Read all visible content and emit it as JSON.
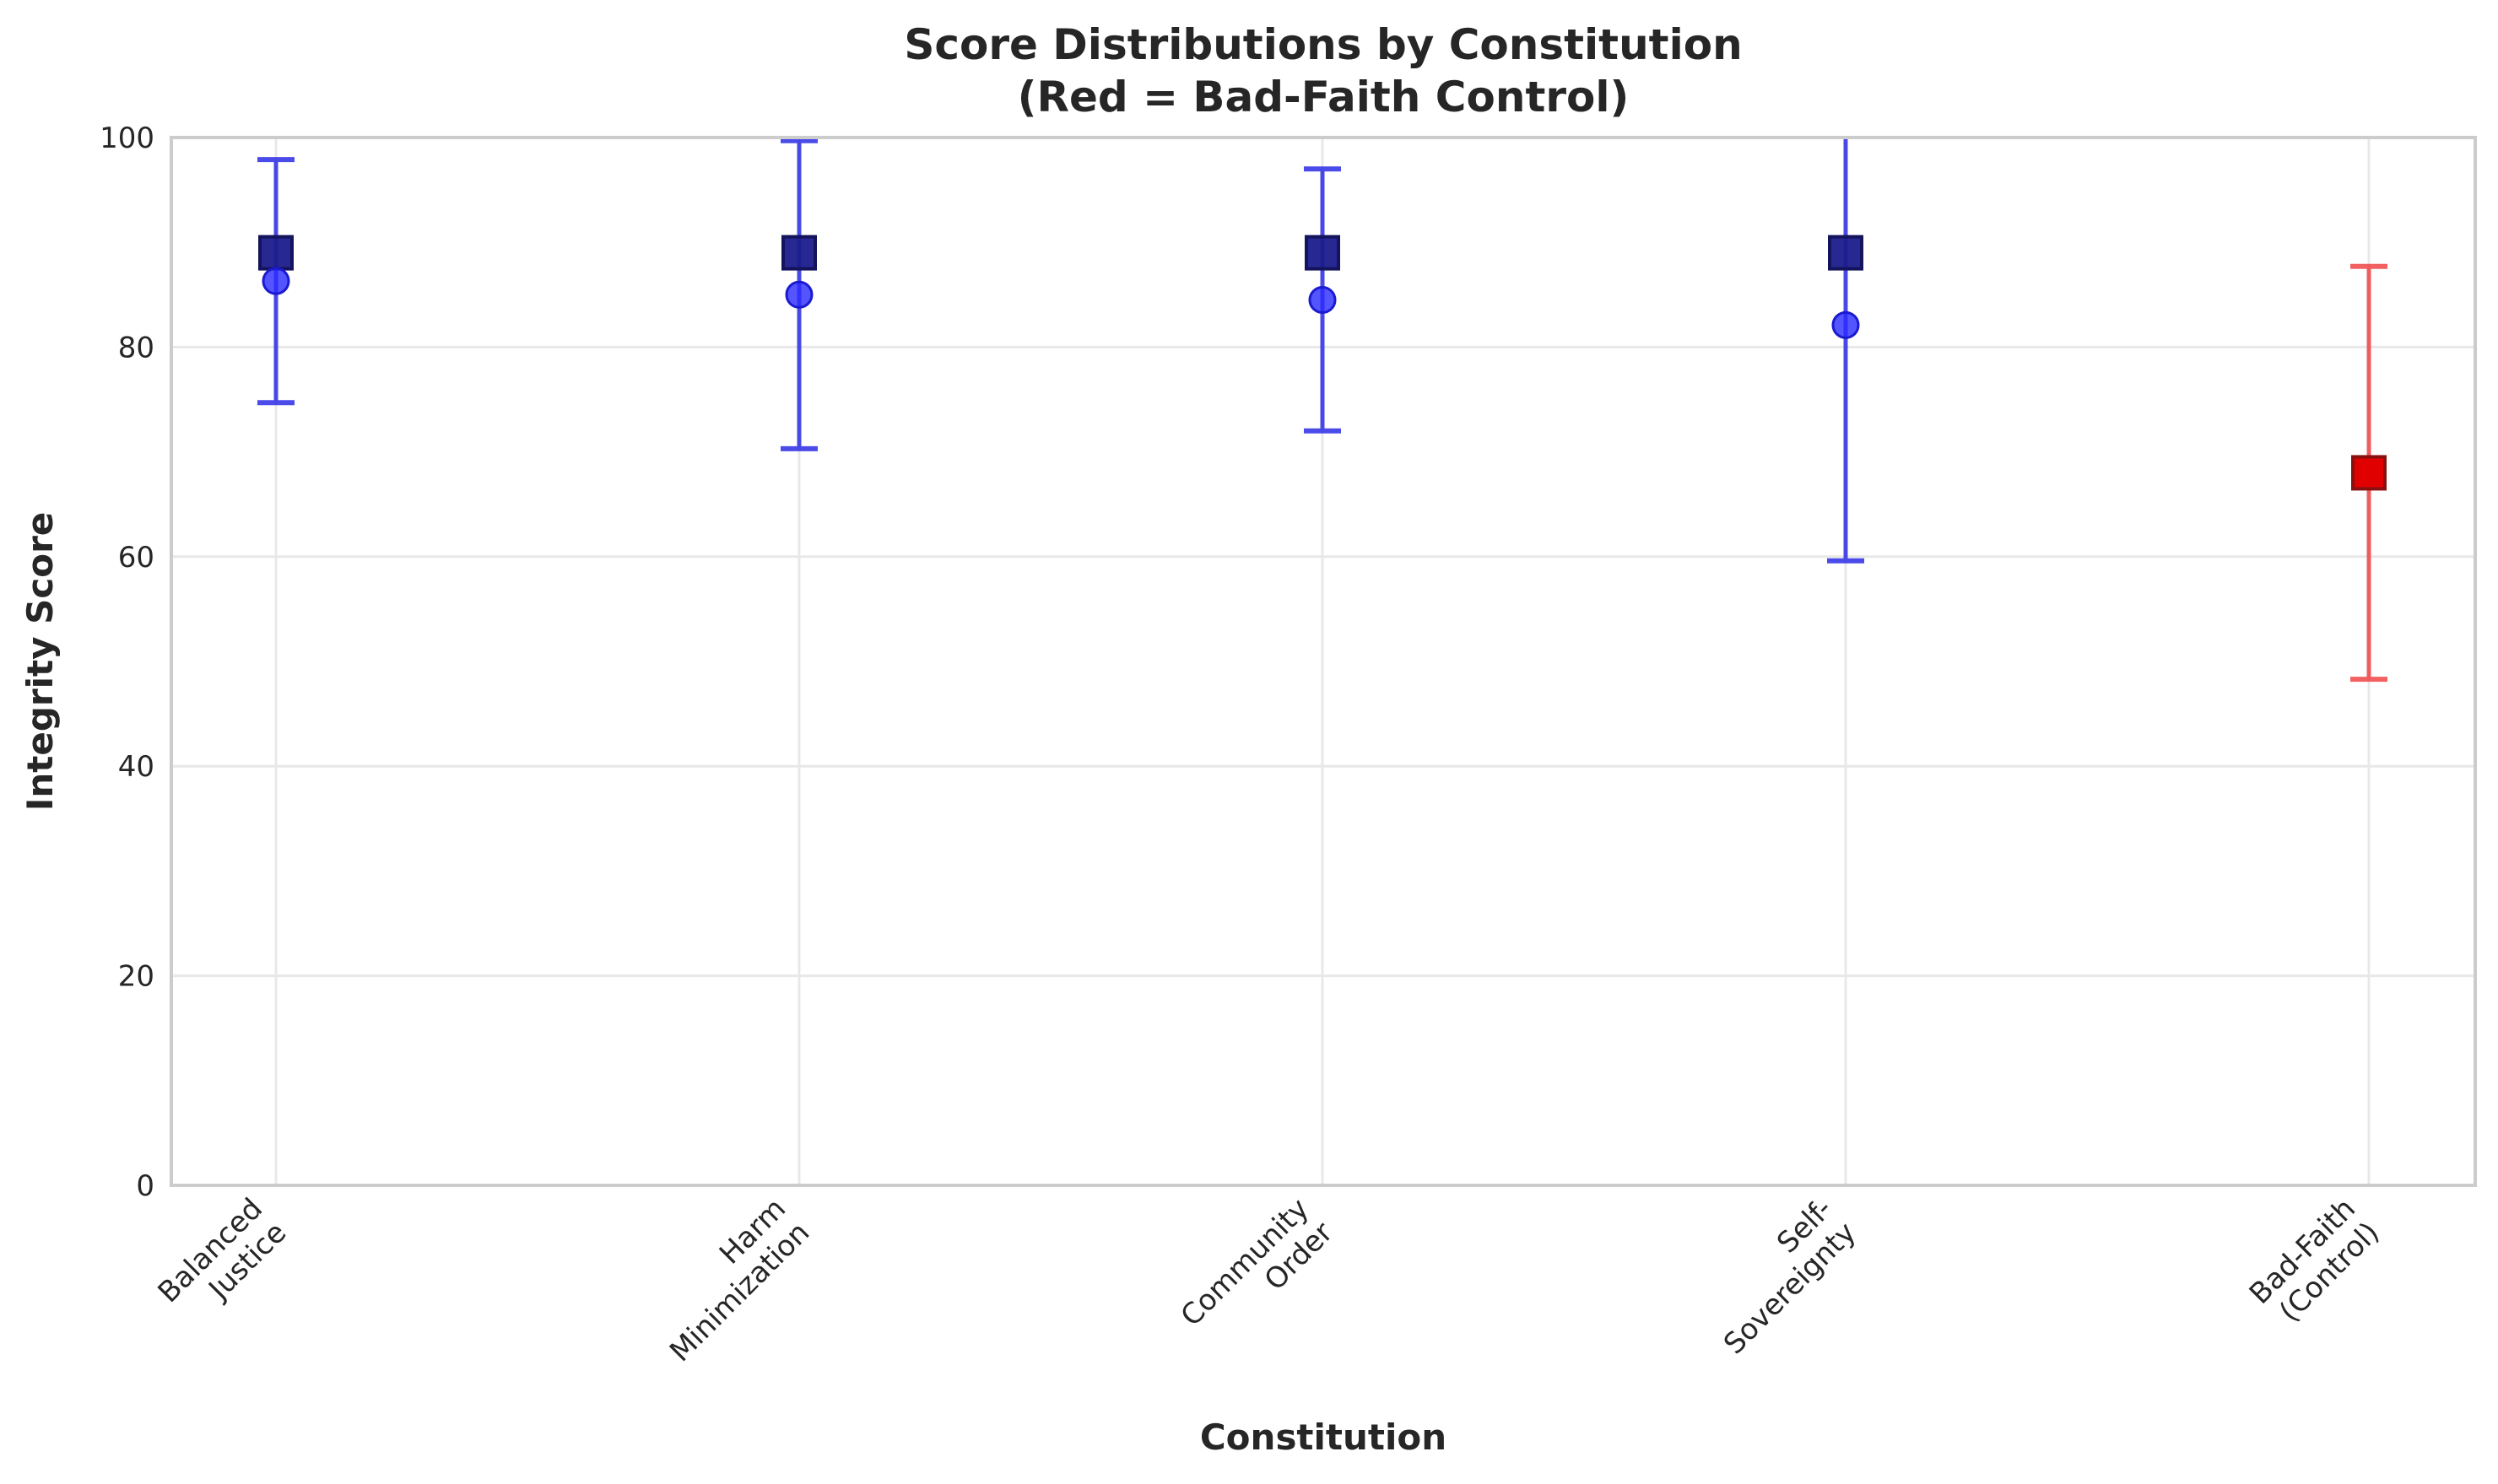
{
  "chart_data": {
    "type": "scatter",
    "title_lines": [
      "Score Distributions by Constitution",
      "(Red = Bad-Faith Control)"
    ],
    "xlabel": "Constitution",
    "ylabel": "Integrity Score",
    "ylim": [
      0,
      100
    ],
    "yticks": [
      "0",
      "20",
      "40",
      "60",
      "80",
      "100"
    ],
    "grid": true,
    "categories": [
      {
        "lines": [
          "Balanced",
          "Justice"
        ],
        "mean": 86.3,
        "median": 89,
        "err_low": 74.7,
        "err_high": 97.9,
        "control": false
      },
      {
        "lines": [
          "Harm",
          "Minimization"
        ],
        "mean": 85.0,
        "median": 89,
        "err_low": 70.3,
        "err_high": 99.7,
        "control": false
      },
      {
        "lines": [
          "Community",
          "Order"
        ],
        "mean": 84.5,
        "median": 89,
        "err_low": 72.0,
        "err_high": 97.0,
        "control": false
      },
      {
        "lines": [
          "Self-",
          "Sovereignty"
        ],
        "mean": 82.1,
        "median": 89,
        "err_low": 59.6,
        "err_high": 104.6,
        "control": false
      },
      {
        "lines": [
          "Bad-Faith",
          "(Control)"
        ],
        "mean": 68.0,
        "median": 68,
        "err_low": 48.3,
        "err_high": 87.7,
        "control": true
      }
    ],
    "colors": {
      "normal_error": "#1f1fe6",
      "normal_mean": "#2b2bff",
      "normal_median": "#1c1c8c",
      "control_error": "#f03a3a",
      "control_fill": "#e00000",
      "control_edge": "#8a1010",
      "grid": "#e8e8e8",
      "spine": "#cccccc"
    }
  }
}
